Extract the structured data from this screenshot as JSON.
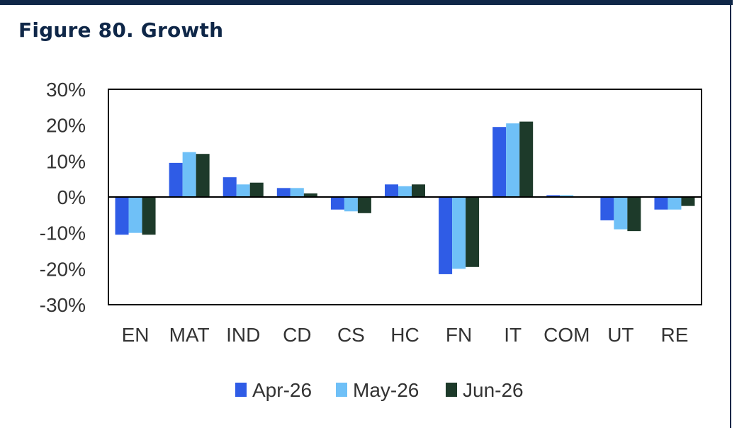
{
  "figure_title": "Figure 80. Growth",
  "colors": {
    "frame": "#0f2748",
    "apr": "#2f5ce6",
    "may": "#6fc0f7",
    "jun": "#1d3a2a"
  },
  "chart_data": {
    "type": "bar",
    "title": "Figure 80. Growth",
    "xlabel": "",
    "ylabel": "",
    "ylim": [
      -30,
      30
    ],
    "yticks": [
      30,
      20,
      10,
      0,
      -10,
      -20,
      -30
    ],
    "ytick_labels": [
      "30%",
      "20%",
      "10%",
      "0%",
      "-10%",
      "-20%",
      "-30%"
    ],
    "categories": [
      "EN",
      "MAT",
      "IND",
      "CD",
      "CS",
      "HC",
      "FN",
      "IT",
      "COM",
      "UT",
      "RE"
    ],
    "series": [
      {
        "name": "Apr-26",
        "color": "#2f5ce6",
        "values": [
          -10.5,
          9.5,
          5.5,
          2.5,
          -3.5,
          3.5,
          -21.5,
          19.5,
          0.5,
          -6.5,
          -3.5
        ]
      },
      {
        "name": "May-26",
        "color": "#6fc0f7",
        "values": [
          -10.0,
          12.5,
          3.5,
          2.5,
          -4.0,
          3.0,
          -20.0,
          20.5,
          0.5,
          -9.0,
          -3.5
        ]
      },
      {
        "name": "Jun-26",
        "color": "#1d3a2a",
        "values": [
          -10.5,
          12.0,
          4.0,
          1.0,
          -4.5,
          3.5,
          -19.5,
          21.0,
          0.0,
          -9.5,
          -2.5
        ]
      }
    ],
    "grid": false,
    "legend_position": "bottom"
  }
}
